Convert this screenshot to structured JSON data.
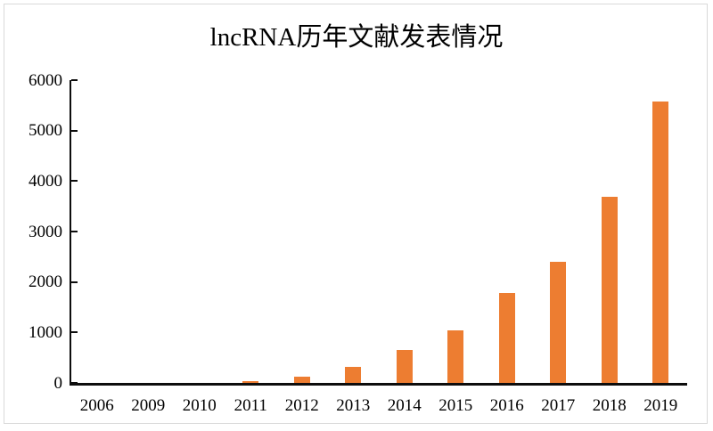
{
  "chart_data": {
    "type": "bar",
    "title": "lncRNA历年文献发表情况",
    "categories": [
      "2006",
      "2009",
      "2010",
      "2011",
      "2012",
      "2013",
      "2014",
      "2015",
      "2016",
      "2017",
      "2018",
      "2019"
    ],
    "values": [
      0,
      0,
      0,
      40,
      130,
      310,
      650,
      1040,
      1780,
      2400,
      3680,
      5570
    ],
    "y_ticks": [
      0,
      1000,
      2000,
      3000,
      4000,
      5000,
      6000
    ],
    "ylim": [
      0,
      6000
    ],
    "xlabel": "",
    "ylabel": "",
    "grid": "off",
    "legend": "none",
    "bar_color": "#ED7D31",
    "axis_color": "#0d0d0d",
    "background_color": "#ffffff",
    "frame_border_color": "#d9d9d9"
  }
}
